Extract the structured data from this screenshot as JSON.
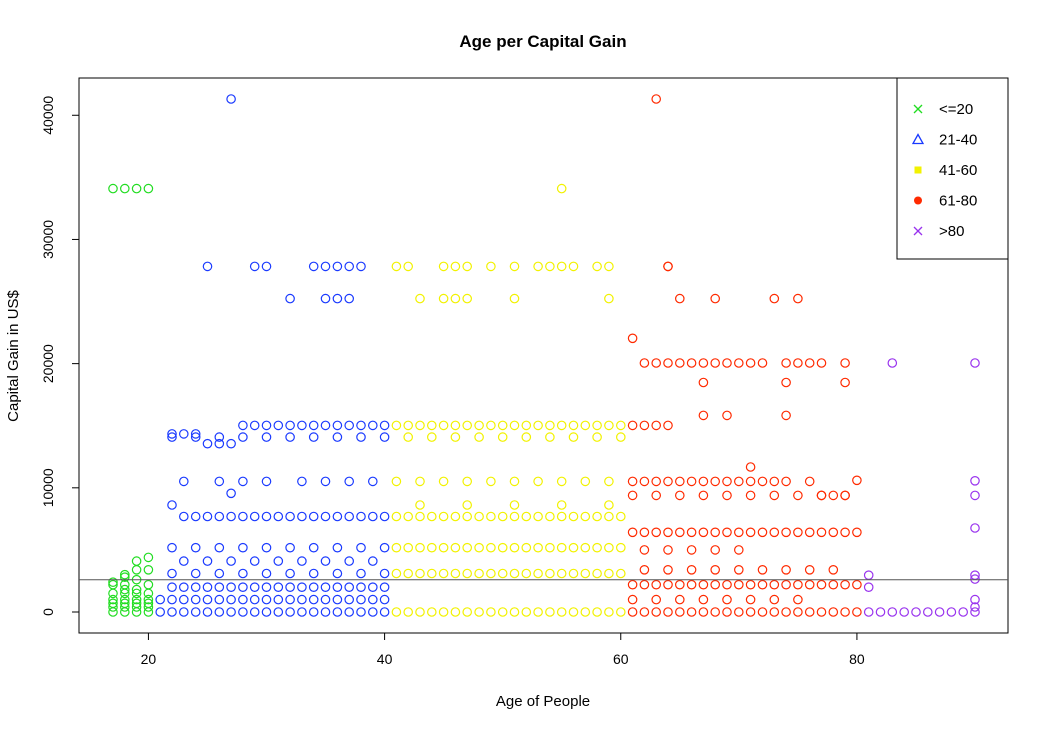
{
  "chart_data": {
    "type": "scatter",
    "title": "Age per Capital Gain",
    "xlabel": "Age of People",
    "ylabel": "Capital Gain in US$",
    "xlim": [
      17,
      90
    ],
    "ylim": [
      0,
      41310
    ],
    "x_ticks": [
      20,
      40,
      60,
      80
    ],
    "y_ticks": [
      0,
      10000,
      20000,
      30000,
      40000
    ],
    "x_tick_labels": [
      "20",
      "40",
      "60",
      "80"
    ],
    "y_tick_labels": [
      "0",
      "10000",
      "20000",
      "30000",
      "40000"
    ],
    "grid": false,
    "legend_position": "top-right",
    "reference_line": {
      "orientation": "horizontal",
      "y": 2600,
      "color": "#555555"
    },
    "legend": [
      {
        "label": "<=20",
        "symbol": "cross",
        "color": "#22dd22"
      },
      {
        "label": "21-40",
        "symbol": "triangle",
        "color": "#1a3aff"
      },
      {
        "label": "41-60",
        "symbol": "square",
        "color": "#f2f200"
      },
      {
        "label": "61-80",
        "symbol": "circle-filled",
        "color": "#ff2a00"
      },
      {
        "label": ">80",
        "symbol": "cross",
        "color": "#9933ee"
      }
    ],
    "series": [
      {
        "name": "<=20",
        "color": "#22dd22",
        "x": [
          17,
          18,
          19,
          20,
          17,
          18,
          19,
          20,
          17,
          18,
          19,
          20,
          17,
          18,
          19,
          20,
          17,
          18,
          19,
          20,
          17,
          18,
          19,
          20,
          17,
          18,
          20,
          19,
          18,
          20,
          19,
          19,
          18,
          17,
          18,
          19,
          20
        ],
        "y": [
          34095,
          34095,
          34095,
          34095,
          0,
          0,
          0,
          0,
          400,
          400,
          400,
          400,
          700,
          700,
          700,
          700,
          1000,
          1000,
          1000,
          1000,
          1500,
          1500,
          1500,
          1500,
          2200,
          2200,
          2200,
          2600,
          3000,
          3400,
          3400,
          4100,
          2800,
          2400,
          1800,
          1800,
          4400
        ]
      },
      {
        "name": "21-40",
        "color": "#1a3aff",
        "x": [
          27,
          25,
          29,
          30,
          34,
          35,
          36,
          37,
          38,
          36,
          32,
          35,
          37,
          22,
          23,
          24,
          25,
          26,
          27,
          28,
          29,
          30,
          31,
          32,
          33,
          34,
          35,
          36,
          37,
          38,
          39,
          40,
          22,
          23,
          24,
          25,
          26,
          27,
          28,
          29,
          30,
          31,
          32,
          33,
          34,
          35,
          36,
          37,
          38,
          39,
          40,
          23,
          26,
          28,
          30,
          33,
          35,
          37,
          39,
          22,
          24,
          26,
          28,
          30,
          32,
          34,
          36,
          38,
          40,
          21,
          22,
          23,
          24,
          25,
          26,
          27,
          28,
          29,
          30,
          31,
          32,
          33,
          34,
          35,
          36,
          37,
          38,
          39,
          40,
          22,
          23,
          24,
          25,
          26,
          27,
          28,
          29,
          30,
          31,
          32,
          33,
          34,
          35,
          36,
          37,
          38,
          39,
          40,
          22,
          24,
          26,
          28,
          30,
          32,
          34,
          36,
          38,
          40,
          23,
          25,
          27,
          29,
          31,
          33,
          35,
          37,
          39,
          21,
          22,
          23,
          24,
          25,
          26,
          27,
          28,
          29,
          30,
          31,
          32,
          33,
          34,
          35,
          36,
          37,
          38,
          39,
          40,
          22,
          24,
          26,
          28,
          30,
          32,
          34,
          36,
          38,
          40,
          27
        ],
        "y": [
          41310,
          27828,
          27828,
          27828,
          27828,
          27828,
          27828,
          27828,
          27828,
          25236,
          25236,
          25236,
          25236,
          14344,
          14344,
          14344,
          13550,
          13550,
          13550,
          15024,
          15024,
          15024,
          15024,
          15024,
          15024,
          15024,
          15024,
          15024,
          15024,
          15024,
          15024,
          15024,
          8614,
          7688,
          7688,
          7688,
          7688,
          7688,
          7688,
          7688,
          7688,
          7688,
          7688,
          7688,
          7688,
          7688,
          7688,
          7688,
          7688,
          7688,
          7688,
          10520,
          10520,
          10520,
          10520,
          10520,
          10520,
          10520,
          10520,
          5178,
          5178,
          5178,
          5178,
          5178,
          5178,
          5178,
          5178,
          5178,
          5178,
          0,
          0,
          0,
          0,
          0,
          0,
          0,
          0,
          0,
          0,
          0,
          0,
          0,
          0,
          0,
          0,
          0,
          0,
          0,
          0,
          2000,
          2000,
          2000,
          2000,
          2000,
          2000,
          2000,
          2000,
          2000,
          2000,
          2000,
          2000,
          2000,
          2000,
          2000,
          2000,
          2000,
          2000,
          2000,
          3100,
          3100,
          3100,
          3100,
          3100,
          3100,
          3100,
          3100,
          3100,
          3100,
          4100,
          4100,
          4100,
          4100,
          4100,
          4100,
          4100,
          4100,
          4100,
          1000,
          1000,
          1000,
          1000,
          1000,
          1000,
          1000,
          1000,
          1000,
          1000,
          1000,
          1000,
          1000,
          1000,
          1000,
          1000,
          1000,
          1000,
          1000,
          1000,
          14084,
          14084,
          14084,
          14084,
          14084,
          14084,
          14084,
          14084,
          14084,
          14084,
          9562
        ]
      },
      {
        "name": "41-60",
        "color": "#f2f200",
        "x": [
          55,
          41,
          42,
          45,
          46,
          47,
          49,
          51,
          53,
          54,
          55,
          56,
          58,
          59,
          43,
          45,
          46,
          47,
          51,
          59,
          41,
          42,
          43,
          44,
          45,
          46,
          47,
          48,
          49,
          50,
          51,
          52,
          53,
          54,
          55,
          56,
          57,
          58,
          59,
          60,
          41,
          42,
          43,
          44,
          45,
          46,
          47,
          48,
          49,
          50,
          51,
          52,
          53,
          54,
          55,
          56,
          57,
          58,
          59,
          60,
          41,
          43,
          45,
          47,
          49,
          51,
          53,
          55,
          57,
          59,
          41,
          42,
          43,
          44,
          45,
          46,
          47,
          48,
          49,
          50,
          51,
          52,
          53,
          54,
          55,
          56,
          57,
          58,
          59,
          60,
          41,
          42,
          43,
          44,
          45,
          46,
          47,
          48,
          49,
          50,
          51,
          52,
          53,
          54,
          55,
          56,
          57,
          58,
          59,
          60,
          42,
          44,
          46,
          48,
          50,
          52,
          54,
          56,
          58,
          60,
          41,
          42,
          43,
          44,
          45,
          46,
          47,
          48,
          49,
          50,
          51,
          52,
          53,
          54,
          55,
          56,
          57,
          58,
          59,
          60,
          43,
          47,
          51,
          55,
          59
        ],
        "y": [
          34095,
          27828,
          27828,
          27828,
          27828,
          27828,
          27828,
          27828,
          27828,
          27828,
          27828,
          27828,
          27828,
          27828,
          25236,
          25236,
          25236,
          25236,
          25236,
          25236,
          15024,
          15024,
          15024,
          15024,
          15024,
          15024,
          15024,
          15024,
          15024,
          15024,
          15024,
          15024,
          15024,
          15024,
          15024,
          15024,
          15024,
          15024,
          15024,
          15024,
          7688,
          7688,
          7688,
          7688,
          7688,
          7688,
          7688,
          7688,
          7688,
          7688,
          7688,
          7688,
          7688,
          7688,
          7688,
          7688,
          7688,
          7688,
          7688,
          7688,
          10520,
          10520,
          10520,
          10520,
          10520,
          10520,
          10520,
          10520,
          10520,
          10520,
          0,
          0,
          0,
          0,
          0,
          0,
          0,
          0,
          0,
          0,
          0,
          0,
          0,
          0,
          0,
          0,
          0,
          0,
          0,
          0,
          5178,
          5178,
          5178,
          5178,
          5178,
          5178,
          5178,
          5178,
          5178,
          5178,
          5178,
          5178,
          5178,
          5178,
          5178,
          5178,
          5178,
          5178,
          5178,
          5178,
          14084,
          14084,
          14084,
          14084,
          14084,
          14084,
          14084,
          14084,
          14084,
          14084,
          3100,
          3100,
          3100,
          3100,
          3100,
          3100,
          3100,
          3100,
          3100,
          3100,
          3100,
          3100,
          3100,
          3100,
          3100,
          3100,
          3100,
          3100,
          3100,
          3100,
          8614,
          8614,
          8614,
          8614,
          8614
        ]
      },
      {
        "name": "61-80",
        "color": "#ff2a00",
        "x": [
          63,
          64,
          64,
          65,
          68,
          73,
          75,
          61,
          62,
          63,
          64,
          65,
          66,
          67,
          68,
          69,
          70,
          71,
          72,
          74,
          75,
          76,
          77,
          79,
          67,
          74,
          79,
          61,
          62,
          63,
          64,
          67,
          74,
          69,
          71,
          61,
          62,
          63,
          64,
          65,
          66,
          67,
          68,
          69,
          70,
          71,
          72,
          73,
          74,
          76,
          77,
          78,
          79,
          80,
          61,
          62,
          63,
          64,
          65,
          66,
          67,
          68,
          69,
          70,
          71,
          72,
          73,
          74,
          75,
          76,
          77,
          78,
          79,
          80,
          61,
          62,
          63,
          64,
          65,
          66,
          67,
          68,
          69,
          70,
          71,
          72,
          73,
          74,
          75,
          76,
          77,
          78,
          79,
          80,
          61,
          63,
          65,
          67,
          69,
          71,
          73,
          75,
          77,
          79,
          61,
          62,
          63,
          64,
          65,
          66,
          67,
          68,
          69,
          70,
          71,
          72,
          73,
          74,
          75,
          76,
          77,
          78,
          79,
          80,
          62,
          64,
          66,
          68,
          70,
          72,
          74,
          76,
          78,
          61,
          63,
          65,
          67,
          69,
          71,
          73,
          75,
          62,
          64,
          66,
          68,
          70
        ],
        "y": [
          41310,
          27828,
          27828,
          25236,
          25236,
          25236,
          25236,
          22040,
          20051,
          20051,
          20051,
          20051,
          20051,
          20051,
          20051,
          20051,
          20051,
          20051,
          20051,
          20051,
          20051,
          20051,
          20051,
          20051,
          18481,
          18481,
          18481,
          15024,
          15024,
          15024,
          15024,
          15831,
          15831,
          15831,
          11678,
          10520,
          10520,
          10520,
          10520,
          10520,
          10520,
          10520,
          10520,
          10520,
          10520,
          10520,
          10520,
          10520,
          10520,
          10520,
          9386,
          9386,
          9386,
          10605,
          0,
          0,
          0,
          0,
          0,
          0,
          0,
          0,
          0,
          0,
          0,
          0,
          0,
          0,
          0,
          0,
          0,
          0,
          0,
          0,
          6418,
          6418,
          6418,
          6418,
          6418,
          6418,
          6418,
          6418,
          6418,
          6418,
          6418,
          6418,
          6418,
          6418,
          6418,
          6418,
          6418,
          6418,
          6418,
          6418,
          9386,
          9386,
          9386,
          9386,
          9386,
          9386,
          9386,
          9386,
          9386,
          9386,
          2200,
          2200,
          2200,
          2200,
          2200,
          2200,
          2200,
          2200,
          2200,
          2200,
          2200,
          2200,
          2200,
          2200,
          2200,
          2200,
          2200,
          2200,
          2200,
          2200,
          3400,
          3400,
          3400,
          3400,
          3400,
          3400,
          3400,
          3400,
          3400,
          1000,
          1000,
          1000,
          1000,
          1000,
          1000,
          1000,
          1000,
          5000,
          5000,
          5000,
          5000,
          5000
        ]
      },
      {
        "name": ">80",
        "color": "#9933ee",
        "x": [
          83,
          90,
          90,
          90,
          90,
          90,
          90,
          90,
          90,
          81,
          82,
          83,
          84,
          85,
          86,
          87,
          88,
          89,
          90,
          81,
          81
        ],
        "y": [
          20051,
          20051,
          10566,
          9386,
          6767,
          2964,
          2653,
          1000,
          401,
          0,
          0,
          0,
          0,
          0,
          0,
          0,
          0,
          0,
          0,
          2964,
          2000
        ]
      }
    ]
  }
}
